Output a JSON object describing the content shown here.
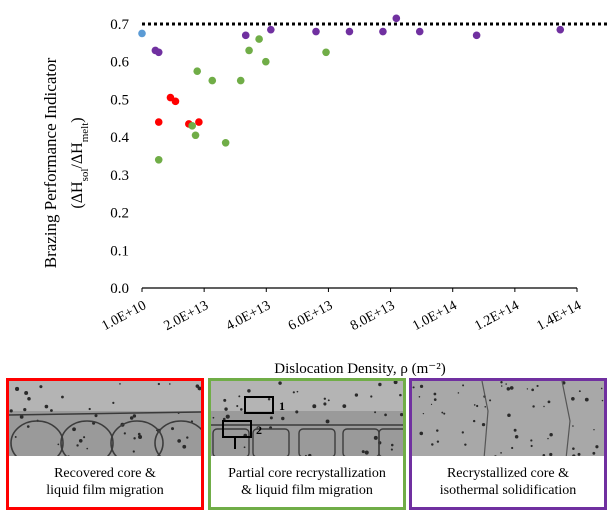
{
  "chart_data": {
    "type": "scatter",
    "title": "",
    "ylabel": "Brazing Performance Indicator",
    "ylabel_formula": "(ΔHsol/ΔHmelt)",
    "xlabel": "Dislocation Density, ρ (m⁻²)",
    "xlim": [
      10000000000000.0,
      140000000000000.0
    ],
    "ylim": [
      0.0,
      0.7
    ],
    "xticks": [
      "1.0E+10",
      "2.0E+13",
      "4.0E+13",
      "6.0E+13",
      "8.0E+13",
      "1.0E+14",
      "1.2E+14",
      "1.4E+14"
    ],
    "yticks": [
      "0.0",
      "0.1",
      "0.2",
      "0.3",
      "0.4",
      "0.5",
      "0.6",
      "0.7"
    ],
    "reference_line": 0.7,
    "grid": false,
    "series": [
      {
        "color": "#5b9bd5",
        "points": [
          [
            10000000000000.0,
            0.675
          ]
        ]
      },
      {
        "color": "#ff0000",
        "points": [
          [
            15000000000000.0,
            0.44
          ],
          [
            18500000000000.0,
            0.505
          ],
          [
            20000000000000.0,
            0.495
          ],
          [
            24000000000000.0,
            0.435
          ],
          [
            27000000000000.0,
            0.44
          ]
        ]
      },
      {
        "color": "#70ad47",
        "points": [
          [
            15000000000000.0,
            0.34
          ],
          [
            25000000000000.0,
            0.43
          ],
          [
            26000000000000.0,
            0.405
          ],
          [
            26500000000000.0,
            0.575
          ],
          [
            31000000000000.0,
            0.55
          ],
          [
            35000000000000.0,
            0.385
          ],
          [
            39500000000000.0,
            0.55
          ],
          [
            42000000000000.0,
            0.63
          ],
          [
            45000000000000.0,
            0.66
          ],
          [
            47000000000000.0,
            0.6
          ],
          [
            65000000000000.0,
            0.625
          ]
        ]
      },
      {
        "color": "#7030a0",
        "points": [
          [
            14000000000000.0,
            0.63
          ],
          [
            15000000000000.0,
            0.625
          ],
          [
            41000000000000.0,
            0.67
          ],
          [
            48500000000000.0,
            0.685
          ],
          [
            62000000000000.0,
            0.68
          ],
          [
            72000000000000.0,
            0.68
          ],
          [
            82000000000000.0,
            0.68
          ],
          [
            86000000000000.0,
            0.715
          ],
          [
            93000000000000.0,
            0.68
          ],
          [
            110000000000000.0,
            0.67
          ],
          [
            135000000000000.0,
            0.685
          ]
        ]
      }
    ]
  },
  "panels": [
    {
      "line1": "Recovered core &",
      "line2": "liquid film migration",
      "border": "#ff0000"
    },
    {
      "line1": "Partial core recrystallization",
      "line2": "& liquid film migration",
      "border": "#70ad47",
      "label1": "1",
      "label2": "2"
    },
    {
      "line1": "Recrystallized core &",
      "line2": "isothermal solidification",
      "border": "#7030a0"
    }
  ]
}
